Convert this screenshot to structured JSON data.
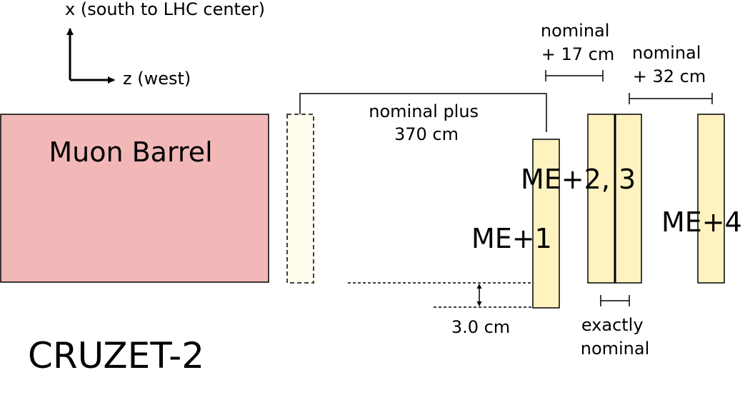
{
  "axes": {
    "x_label": "x (south to LHC center)",
    "z_label": "z (west)"
  },
  "barrel": {
    "label": "Muon Barrel",
    "fill": "#f2b8b8"
  },
  "chambers": {
    "fill": "#fdf2c0",
    "ghost_fill": "#fefcec",
    "me1": "ME+1",
    "me23": "ME+2, 3",
    "me4": "ME+4"
  },
  "dimensions": {
    "me1_shift": [
      "nominal plus",
      "370 cm"
    ],
    "me2_shift": [
      "nominal",
      "+ 17 cm"
    ],
    "me4_shift": [
      "nominal",
      "+ 32 cm"
    ],
    "me3_shift": [
      "exactly",
      "nominal"
    ],
    "vertical_offset": "3.0 cm"
  },
  "run": "CRUZET-2"
}
